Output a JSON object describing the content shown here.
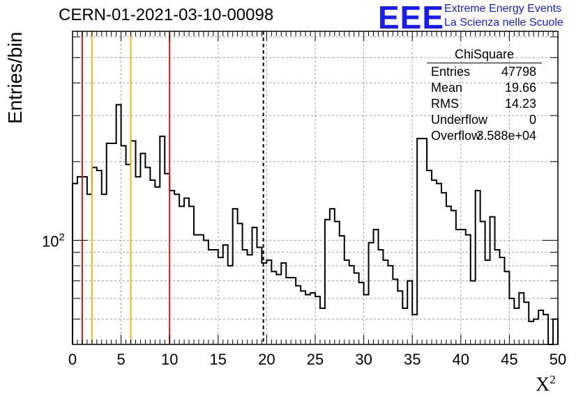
{
  "header": {
    "title": "CERN-01-2021-03-10-00098",
    "logo_mark": "EEE",
    "logo_line1": "Extreme Energy Events",
    "logo_line2": "La Scienza nelle Scuole"
  },
  "stats_box": {
    "title": "ChiSquare",
    "rows": [
      {
        "key": "Entries",
        "value": "47798"
      },
      {
        "key": "Mean",
        "value": "19.66"
      },
      {
        "key": "RMS",
        "value": "14.23"
      },
      {
        "key": "Underflow",
        "value": "0"
      },
      {
        "key": "Overflow",
        "value": "3.588e+04"
      }
    ]
  },
  "colors": {
    "red_lines": "#e8150f",
    "yellow_lines": "#f3b90b",
    "histogram": "#000000",
    "grid": "#a0a0a0"
  },
  "chart_data": {
    "type": "bar",
    "style": "step-histogram",
    "xlabel": "X²",
    "ylabel": "Entries/bin",
    "xlim": [
      0,
      50
    ],
    "ylim": [
      40,
      630
    ],
    "log_y": true,
    "grid": true,
    "bin_width": 0.5,
    "x_ticks": [
      "0",
      "5",
      "10",
      "15",
      "20",
      "25",
      "30",
      "35",
      "40",
      "45",
      "50"
    ],
    "y_tick_label": "10^2",
    "values": [
      165,
      175,
      175,
      150,
      190,
      185,
      150,
      235,
      235,
      330,
      230,
      195,
      240,
      175,
      215,
      190,
      170,
      160,
      250,
      180,
      155,
      150,
      135,
      145,
      135,
      105,
      105,
      100,
      92,
      92,
      86,
      96,
      80,
      132,
      116,
      92,
      88,
      112,
      94,
      82,
      84,
      76,
      74,
      82,
      72,
      72,
      67,
      64,
      62,
      63,
      61,
      55,
      120,
      132,
      118,
      104,
      84,
      80,
      75,
      69,
      62,
      98,
      110,
      92,
      84,
      80,
      71,
      64,
      55,
      70,
      52,
      245,
      245,
      185,
      170,
      165,
      152,
      135,
      130,
      110,
      110,
      105,
      70,
      155,
      118,
      84,
      123,
      92,
      86,
      76,
      60,
      55,
      63,
      58,
      49,
      50,
      54,
      52,
      28,
      50,
      47
    ],
    "vertical_lines": [
      {
        "x": 1,
        "color": "red"
      },
      {
        "x": 2,
        "color": "yellow"
      },
      {
        "x": 6,
        "color": "yellow"
      },
      {
        "x": 10,
        "color": "red"
      },
      {
        "x": 19.66,
        "color": "black",
        "style": "dashed"
      }
    ]
  }
}
